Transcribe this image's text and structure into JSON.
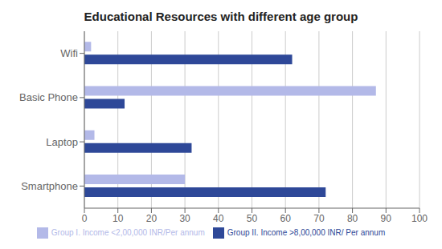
{
  "chart_data": {
    "type": "bar",
    "orientation": "horizontal",
    "title": "Educational  Resources with  different age group",
    "categories": [
      "Smartphone",
      "Laptop",
      "Basic Phone",
      "Wifi"
    ],
    "series": [
      {
        "name": "Group I. Income <2,00,000 INR/Per annum",
        "color": "#b3b9e8",
        "values": [
          30,
          3,
          87,
          2
        ]
      },
      {
        "name": "Group II. Income >8,00,000 INR/ Per annum",
        "color": "#2e4898",
        "values": [
          72,
          32,
          12,
          62
        ]
      }
    ],
    "xlim": [
      0,
      100
    ],
    "xticks": [
      0,
      10,
      20,
      30,
      40,
      50,
      60,
      70,
      80,
      90,
      100
    ],
    "grid": true,
    "legend": "bottom"
  }
}
